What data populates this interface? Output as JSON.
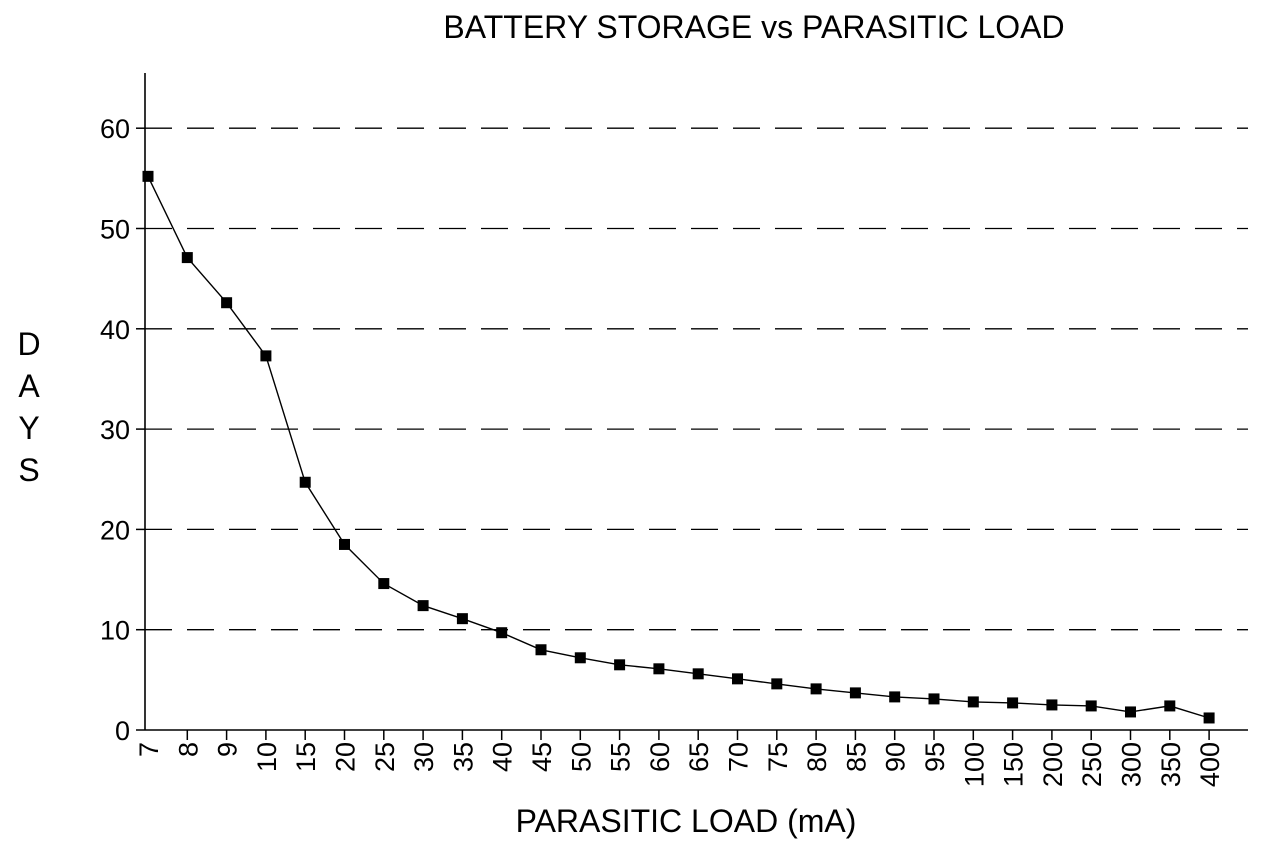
{
  "chart_data": {
    "type": "line",
    "title": "BATTERY STORAGE vs PARASITIC LOAD",
    "xlabel": "PARASITIC LOAD (mA)",
    "ylabel": "DAYS",
    "ylabel_letters": [
      "D",
      "A",
      "Y",
      "S"
    ],
    "categories": [
      "7",
      "8",
      "9",
      "10",
      "15",
      "20",
      "25",
      "30",
      "35",
      "40",
      "45",
      "50",
      "55",
      "60",
      "65",
      "70",
      "75",
      "80",
      "85",
      "90",
      "95",
      "100",
      "150",
      "200",
      "250",
      "300",
      "350",
      "400"
    ],
    "series": [
      {
        "values": [
          55.2,
          47.1,
          42.6,
          37.3,
          24.7,
          18.5,
          14.6,
          12.4,
          11.1,
          9.7,
          8.0,
          7.2,
          6.5,
          6.1,
          5.6,
          5.1,
          4.6,
          4.1,
          3.7,
          3.3,
          3.1,
          2.8,
          2.7,
          2.5,
          2.4,
          1.8,
          2.4,
          1.2
        ],
        "marker": "square",
        "color": "#000000"
      }
    ],
    "y_ticks": [
      0,
      10,
      20,
      30,
      40,
      50,
      60
    ],
    "ylim": [
      0,
      65
    ],
    "grid": "horizontal-dashed",
    "legend": "none"
  }
}
